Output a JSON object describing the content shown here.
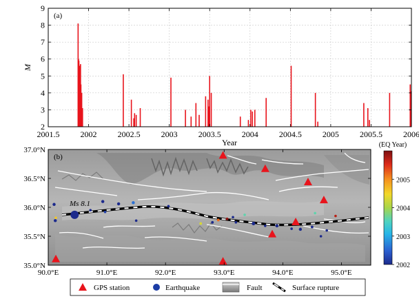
{
  "chart_data": [
    {
      "panel_label": "(a)",
      "type": "bar",
      "xlabel": "Year",
      "ylabel": "M",
      "xlim": [
        2001.5,
        2006
      ],
      "ylim": [
        2,
        9
      ],
      "xticks": [
        "2001.5",
        "2002",
        "2002.5",
        "2003",
        "2003.5",
        "2004",
        "2004.5",
        "2005",
        "2005.5",
        "2006"
      ],
      "yticks": [
        "2",
        "3",
        "4",
        "5",
        "6",
        "7",
        "8",
        "9"
      ],
      "bar_color": "#e8141c",
      "x": [
        2001.87,
        2001.875,
        2001.88,
        2001.885,
        2001.89,
        2001.895,
        2001.9,
        2001.905,
        2001.915,
        2001.925,
        2002.43,
        2002.53,
        2002.56,
        2002.57,
        2002.59,
        2002.64,
        2003.02,
        2003.2,
        2003.27,
        2003.33,
        2003.37,
        2003.45,
        2003.48,
        2003.49,
        2003.5,
        2003.52,
        2003.88,
        2003.98,
        2004.01,
        2004.03,
        2004.06,
        2004.2,
        2004.51,
        2004.81,
        2004.84,
        2005.41,
        2005.46,
        2005.48,
        2005.73,
        2005.985,
        2005.99,
        2005.995
      ],
      "values": [
        8.1,
        6.0,
        5.9,
        5.0,
        5.6,
        4.7,
        5.7,
        4.5,
        4.0,
        3.1,
        5.1,
        3.6,
        2.5,
        2.8,
        2.7,
        3.1,
        4.9,
        3.0,
        2.6,
        3.4,
        2.7,
        3.8,
        3.6,
        3.2,
        5.0,
        4.0,
        2.6,
        2.4,
        3.0,
        2.9,
        3.0,
        3.7,
        5.6,
        4.0,
        2.3,
        3.4,
        3.1,
        2.4,
        4.0,
        4.5,
        3.1,
        4.1
      ]
    },
    {
      "panel_label": "(b)",
      "type": "scatter",
      "xlim": [
        90.0,
        95.5
      ],
      "ylim": [
        35.0,
        37.0
      ],
      "xticks": [
        "90.0°E",
        "91.0°E",
        "92.0°E",
        "93.0°E",
        "94.0°E",
        "95.0°E"
      ],
      "yticks": [
        "35.0°N",
        "35.5°N",
        "36.0°N",
        "36.5°N",
        "37.0°N"
      ],
      "annotation": "Ms 8.1",
      "colorbar": {
        "title": "(EQ Year)",
        "min": 2002,
        "max": 2006,
        "ticks": [
          "2002",
          "2003",
          "2004",
          "2005"
        ]
      },
      "gps_stations": [
        {
          "lon": 92.98,
          "lat": 36.9
        },
        {
          "lon": 93.7,
          "lat": 36.67
        },
        {
          "lon": 94.43,
          "lat": 36.44
        },
        {
          "lon": 94.7,
          "lat": 36.13
        },
        {
          "lon": 94.22,
          "lat": 35.75
        },
        {
          "lon": 93.82,
          "lat": 35.54
        },
        {
          "lon": 90.13,
          "lat": 35.11
        },
        {
          "lon": 92.98,
          "lat": 35.07
        }
      ],
      "earthquakes": [
        {
          "lon": 90.45,
          "lat": 35.87,
          "mag": 8.1,
          "year": 2001.9
        },
        {
          "lon": 90.1,
          "lat": 36.05,
          "mag": 4.0,
          "year": 2002.0
        },
        {
          "lon": 90.12,
          "lat": 35.77,
          "mag": 4.0,
          "year": 2002.0
        },
        {
          "lon": 90.13,
          "lat": 35.82,
          "mag": 3.5,
          "year": 2004.6
        },
        {
          "lon": 90.72,
          "lat": 35.95,
          "mag": 3.5,
          "year": 2002.0
        },
        {
          "lon": 90.93,
          "lat": 36.1,
          "mag": 4.0,
          "year": 2002.0
        },
        {
          "lon": 90.97,
          "lat": 35.92,
          "mag": 3.5,
          "year": 2002.2
        },
        {
          "lon": 91.2,
          "lat": 36.06,
          "mag": 4.0,
          "year": 2002.0
        },
        {
          "lon": 91.45,
          "lat": 36.08,
          "mag": 4.0,
          "year": 2002.6
        },
        {
          "lon": 91.5,
          "lat": 35.77,
          "mag": 3.3,
          "year": 2002.0
        },
        {
          "lon": 92.05,
          "lat": 36.02,
          "mag": 3.3,
          "year": 2002.0
        },
        {
          "lon": 92.6,
          "lat": 35.72,
          "mag": 3.8,
          "year": 2004.3
        },
        {
          "lon": 92.8,
          "lat": 35.74,
          "mag": 3.8,
          "year": 2002.0
        },
        {
          "lon": 92.9,
          "lat": 35.78,
          "mag": 3.8,
          "year": 2005.2
        },
        {
          "lon": 93.05,
          "lat": 35.8,
          "mag": 3.8,
          "year": 2005.9
        },
        {
          "lon": 93.15,
          "lat": 35.83,
          "mag": 3.3,
          "year": 2002.0
        },
        {
          "lon": 93.2,
          "lat": 35.74,
          "mag": 3.3,
          "year": 2002.0
        },
        {
          "lon": 93.35,
          "lat": 35.87,
          "mag": 3.3,
          "year": 2003.6
        },
        {
          "lon": 93.5,
          "lat": 35.72,
          "mag": 4.2,
          "year": 2002.0
        },
        {
          "lon": 93.7,
          "lat": 35.68,
          "mag": 3.5,
          "year": 2002.0
        },
        {
          "lon": 93.9,
          "lat": 35.68,
          "mag": 4.0,
          "year": 2002.0
        },
        {
          "lon": 94.15,
          "lat": 35.63,
          "mag": 3.5,
          "year": 2002.0
        },
        {
          "lon": 94.3,
          "lat": 35.62,
          "mag": 4.0,
          "year": 2002.0
        },
        {
          "lon": 94.5,
          "lat": 35.66,
          "mag": 3.8,
          "year": 2002.0
        },
        {
          "lon": 94.65,
          "lat": 35.5,
          "mag": 3.5,
          "year": 2002.0
        },
        {
          "lon": 94.75,
          "lat": 35.6,
          "mag": 3.3,
          "year": 2002.0
        },
        {
          "lon": 94.9,
          "lat": 35.85,
          "mag": 3.3,
          "year": 2005.7
        },
        {
          "lon": 94.55,
          "lat": 35.9,
          "mag": 3.0,
          "year": 2003.6
        }
      ],
      "legend": [
        "GPS station",
        "Earthquake",
        "Fault",
        "Surface rupture"
      ]
    }
  ]
}
